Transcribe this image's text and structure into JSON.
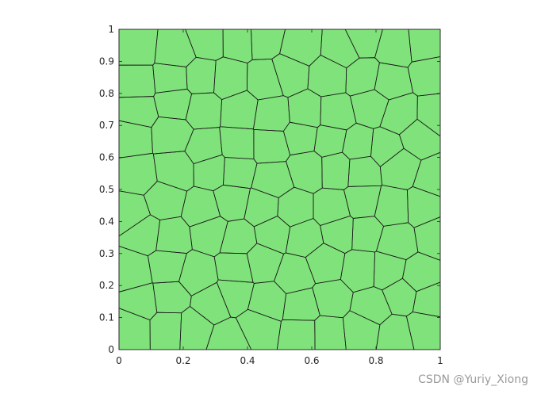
{
  "chart_data": {
    "type": "polygon-mesh",
    "title": "",
    "xlabel": "",
    "ylabel": "",
    "xlim": [
      0,
      1
    ],
    "ylim": [
      0,
      1
    ],
    "x_ticks": [
      "0",
      "0.2",
      "0.4",
      "0.6",
      "0.8",
      "1"
    ],
    "y_ticks": [
      "0",
      "0.1",
      "0.2",
      "0.3",
      "0.4",
      "0.5",
      "0.6",
      "0.7",
      "0.8",
      "0.9",
      "1"
    ],
    "grid": false,
    "legend": "none",
    "fill_color": "#80e27a",
    "edge_color": "#1a1a1a",
    "domain": [
      [
        0,
        0
      ],
      [
        1,
        0
      ],
      [
        1,
        1
      ],
      [
        0,
        1
      ]
    ],
    "cells_x": 10,
    "cells_y": 10
  },
  "watermark": "CSDN @Yuriy_Xiong"
}
